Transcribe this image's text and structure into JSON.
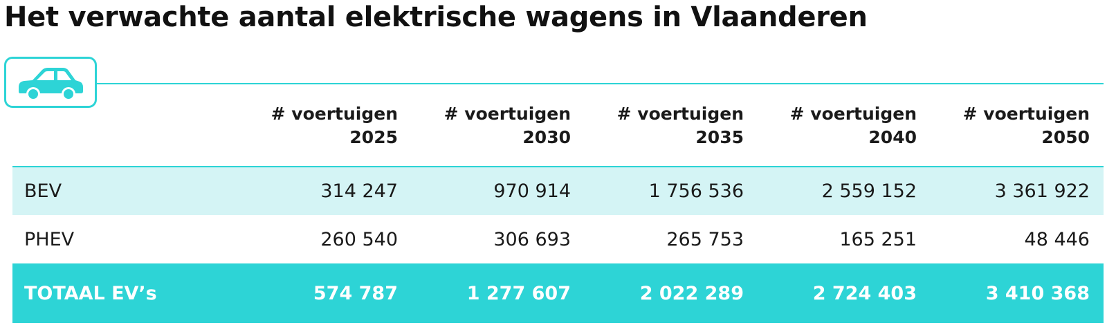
{
  "title": "Het verwachte aantal elektrische wagens in Vlaanderen",
  "icon": "car-icon",
  "colors": {
    "accent": "#2dd4d6",
    "row_tint": "#d4f4f5",
    "total_text": "#ffffff"
  },
  "table": {
    "columns": [
      {
        "line1": "# voertuigen",
        "line2": "2025"
      },
      {
        "line1": "# voertuigen",
        "line2": "2030"
      },
      {
        "line1": "# voertuigen",
        "line2": "2035"
      },
      {
        "line1": "# voertuigen",
        "line2": "2040"
      },
      {
        "line1": "# voertuigen",
        "line2": "2050"
      }
    ],
    "rows": [
      {
        "label": "BEV",
        "values": [
          "314 247",
          "970 914",
          "1 756 536",
          "2 559 152",
          "3 361 922"
        ]
      },
      {
        "label": "PHEV",
        "values": [
          "260 540",
          "306 693",
          "265 753",
          "165 251",
          "48 446"
        ]
      }
    ],
    "total": {
      "label": "TOTAAL EV’s",
      "values": [
        "574 787",
        "1 277 607",
        "2 022 289",
        "2 724 403",
        "3 410 368"
      ]
    }
  }
}
